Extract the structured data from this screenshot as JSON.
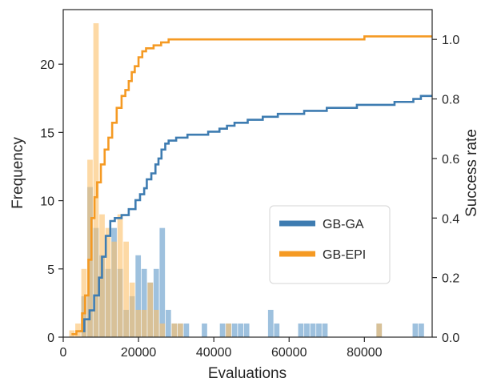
{
  "chart_data": {
    "type": "bar",
    "xlabel": "Evaluations",
    "ylabel": "Frequency",
    "y2label": "Success rate",
    "xlim": [
      0,
      98000
    ],
    "ylim": [
      0,
      24.0
    ],
    "y2lim": [
      0,
      1.1
    ],
    "xticks": [
      0,
      20000,
      40000,
      60000,
      80000
    ],
    "xtick_labels": [
      "0",
      "20000",
      "40000",
      "60000",
      "80000"
    ],
    "yticks": [
      0,
      5,
      10,
      15,
      20
    ],
    "ytick_labels": [
      "0",
      "5",
      "10",
      "15",
      "20"
    ],
    "y2ticks": [
      0.0,
      0.2,
      0.4,
      0.6,
      0.8,
      1.0
    ],
    "y2tick_labels": [
      "0.0",
      "0.2",
      "0.4",
      "0.6",
      "0.8",
      "1.0"
    ],
    "bin_width": 1600,
    "histograms": [
      {
        "name": "GB-GA",
        "color": "#8db6d8",
        "bins": [
          {
            "x": 4800,
            "count": 3
          },
          {
            "x": 6400,
            "count": 11
          },
          {
            "x": 8000,
            "count": 8
          },
          {
            "x": 9600,
            "count": 6
          },
          {
            "x": 11200,
            "count": 5
          },
          {
            "x": 12800,
            "count": 8
          },
          {
            "x": 14400,
            "count": 5
          },
          {
            "x": 16000,
            "count": 2
          },
          {
            "x": 17600,
            "count": 3
          },
          {
            "x": 19200,
            "count": 6
          },
          {
            "x": 20800,
            "count": 5
          },
          {
            "x": 22400,
            "count": 4
          },
          {
            "x": 24000,
            "count": 5
          },
          {
            "x": 25600,
            "count": 8
          },
          {
            "x": 27200,
            "count": 2
          },
          {
            "x": 28800,
            "count": 1
          },
          {
            "x": 30400,
            "count": 1
          },
          {
            "x": 32000,
            "count": 1
          },
          {
            "x": 36800,
            "count": 1
          },
          {
            "x": 41600,
            "count": 1
          },
          {
            "x": 43200,
            "count": 1
          },
          {
            "x": 44800,
            "count": 1
          },
          {
            "x": 46400,
            "count": 1
          },
          {
            "x": 48000,
            "count": 1
          },
          {
            "x": 54400,
            "count": 2
          },
          {
            "x": 56000,
            "count": 1
          },
          {
            "x": 62400,
            "count": 1
          },
          {
            "x": 64000,
            "count": 1
          },
          {
            "x": 65600,
            "count": 1
          },
          {
            "x": 67200,
            "count": 1
          },
          {
            "x": 68800,
            "count": 1
          },
          {
            "x": 83200,
            "count": 1
          },
          {
            "x": 92800,
            "count": 1
          },
          {
            "x": 94400,
            "count": 1
          }
        ]
      },
      {
        "name": "GB-EPI",
        "color": "#fbc26d",
        "bins": [
          {
            "x": 1600,
            "count": 0.5
          },
          {
            "x": 3200,
            "count": 1
          },
          {
            "x": 4800,
            "count": 5
          },
          {
            "x": 6400,
            "count": 13
          },
          {
            "x": 8000,
            "count": 23
          },
          {
            "x": 9600,
            "count": 9
          },
          {
            "x": 11200,
            "count": 8
          },
          {
            "x": 12800,
            "count": 7
          },
          {
            "x": 14400,
            "count": 9
          },
          {
            "x": 16000,
            "count": 7
          },
          {
            "x": 17600,
            "count": 4
          },
          {
            "x": 19200,
            "count": 2
          },
          {
            "x": 20800,
            "count": 2
          },
          {
            "x": 22400,
            "count": 4
          },
          {
            "x": 24000,
            "count": 2
          },
          {
            "x": 25600,
            "count": 1
          },
          {
            "x": 28800,
            "count": 1
          },
          {
            "x": 30400,
            "count": 1
          },
          {
            "x": 43200,
            "count": 1
          },
          {
            "x": 83200,
            "count": 1
          }
        ]
      }
    ],
    "series": [
      {
        "name": "GB-GA",
        "type": "step",
        "color": "#3e7cb1",
        "x": [
          4500,
          5600,
          7000,
          8200,
          9500,
          10300,
          11300,
          12500,
          13700,
          15500,
          17400,
          19200,
          20400,
          21500,
          22200,
          23400,
          24500,
          25300,
          26100,
          27100,
          28000,
          30000,
          33000,
          36000,
          38500,
          41500,
          43500,
          45500,
          49000,
          53000,
          57000,
          61000,
          64000,
          66000,
          70000,
          74000,
          78000,
          83000,
          88000,
          93000,
          95000,
          98000
        ],
        "y": [
          0.02,
          0.06,
          0.09,
          0.14,
          0.2,
          0.27,
          0.34,
          0.39,
          0.4,
          0.41,
          0.43,
          0.46,
          0.48,
          0.5,
          0.53,
          0.55,
          0.58,
          0.6,
          0.63,
          0.65,
          0.66,
          0.67,
          0.68,
          0.68,
          0.69,
          0.7,
          0.71,
          0.72,
          0.73,
          0.74,
          0.75,
          0.75,
          0.76,
          0.76,
          0.77,
          0.77,
          0.78,
          0.78,
          0.79,
          0.8,
          0.81,
          0.81
        ]
      },
      {
        "name": "GB-EPI",
        "type": "step",
        "color": "#f59a23",
        "x": [
          2200,
          3500,
          5000,
          5800,
          6700,
          7500,
          8300,
          9000,
          10000,
          11000,
          12000,
          13000,
          14200,
          15500,
          16500,
          17400,
          18200,
          19000,
          20000,
          21000,
          22000,
          24000,
          26000,
          28000,
          31000,
          34000,
          40000,
          50000,
          60000,
          70000,
          80000,
          85000,
          98000
        ],
        "y": [
          0.01,
          0.02,
          0.08,
          0.14,
          0.26,
          0.4,
          0.47,
          0.52,
          0.58,
          0.63,
          0.67,
          0.72,
          0.77,
          0.81,
          0.83,
          0.86,
          0.89,
          0.91,
          0.94,
          0.96,
          0.97,
          0.98,
          0.99,
          1.0,
          1.0,
          1.0,
          1.0,
          1.0,
          1.0,
          1.0,
          1.01,
          1.01,
          1.01
        ]
      }
    ],
    "legend": {
      "placement": "center-right",
      "entries": [
        {
          "label": "GB-GA",
          "color": "#3e7cb1"
        },
        {
          "label": "GB-EPI",
          "color": "#f59a23"
        }
      ]
    },
    "grid": false
  }
}
